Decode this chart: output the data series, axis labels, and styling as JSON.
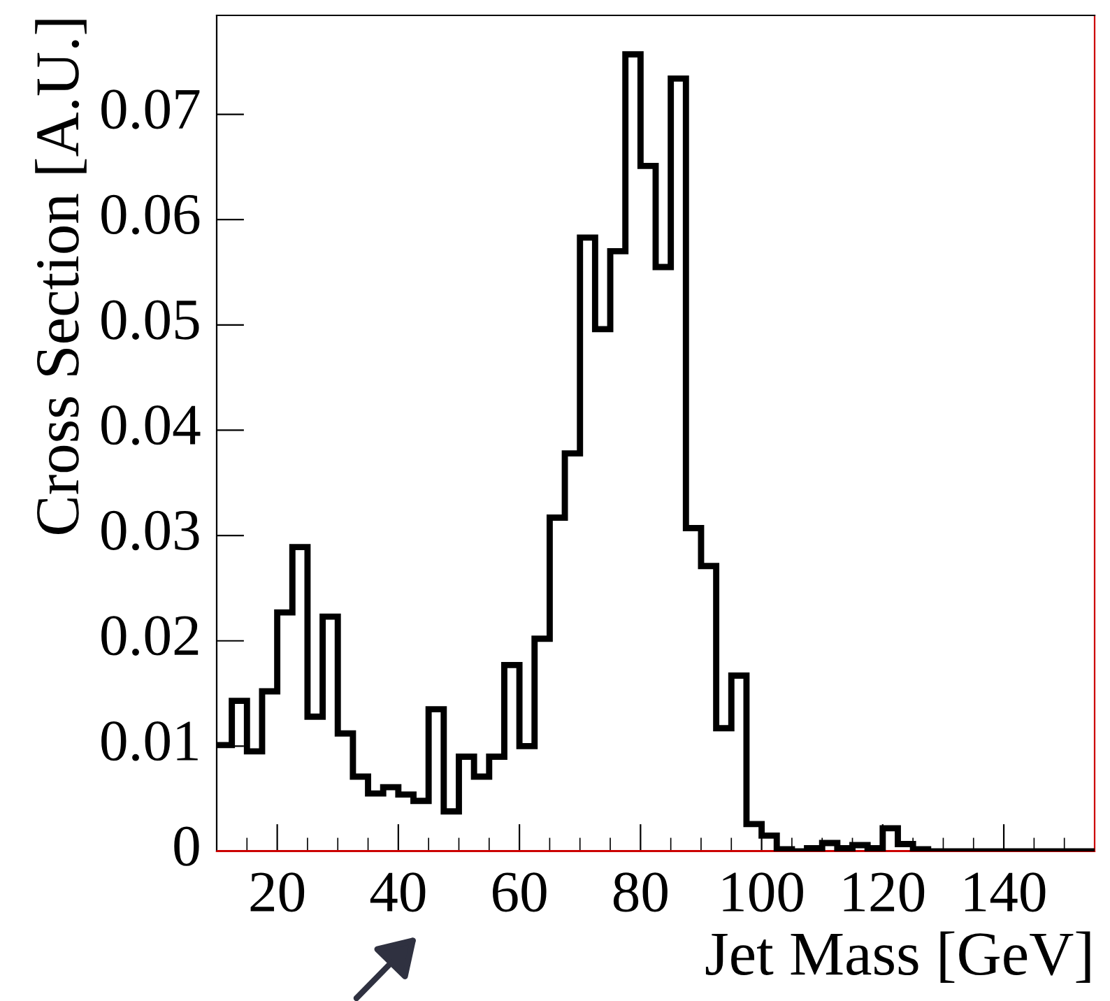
{
  "chart_data": {
    "type": "histogram",
    "xlabel": "Jet Mass [GeV]",
    "ylabel": "Cross Section [A.U.]",
    "bins": [
      10,
      12.5,
      15,
      17.5,
      20,
      22.5,
      25,
      27.5,
      30,
      32.5,
      35,
      37.5,
      40,
      42.5,
      45,
      47.5,
      50,
      52.5,
      55,
      57.5,
      60,
      62.5,
      65,
      67.5,
      70,
      72.5,
      75,
      77.5,
      80,
      82.5,
      85,
      87.5,
      90,
      92.5,
      95,
      97.5,
      100,
      102.5,
      105,
      107.5,
      110,
      112.5,
      115,
      117.5,
      120,
      122.5,
      125,
      127.5,
      130,
      132.5,
      135,
      137.5,
      140,
      142.5,
      145,
      147.5,
      150,
      152.5,
      155
    ],
    "values": [
      0.0101,
      0.0143,
      0.0095,
      0.0152,
      0.0227,
      0.0289,
      0.0128,
      0.0223,
      0.0112,
      0.0071,
      0.0055,
      0.0061,
      0.0054,
      0.0048,
      0.0135,
      0.0038,
      0.009,
      0.0071,
      0.009,
      0.0177,
      0.01,
      0.0202,
      0.0317,
      0.0378,
      0.0583,
      0.0496,
      0.057,
      0.0757,
      0.0651,
      0.0555,
      0.0734,
      0.0307,
      0.0271,
      0.0117,
      0.0167,
      0.0026,
      0.0015,
      0.0002,
      0,
      0.0003,
      0.0008,
      0.0003,
      0.0006,
      0.0003,
      0.0022,
      0.0007,
      0.0002,
      0,
      0,
      0,
      0,
      0,
      0,
      0,
      0,
      0,
      0,
      0
    ],
    "color": "#000000",
    "xlim": [
      10,
      155
    ],
    "xticks": [
      20,
      40,
      60,
      80,
      100,
      120,
      140
    ],
    "ylim": [
      0,
      0.0794
    ],
    "yticks": [
      0,
      0.01,
      0.02,
      0.03,
      0.04,
      0.05,
      0.06,
      0.07
    ],
    "ref_lines": [
      {
        "axis": "y",
        "value": 0,
        "color": "#cc0000"
      }
    ],
    "grid": false,
    "legend": false
  }
}
